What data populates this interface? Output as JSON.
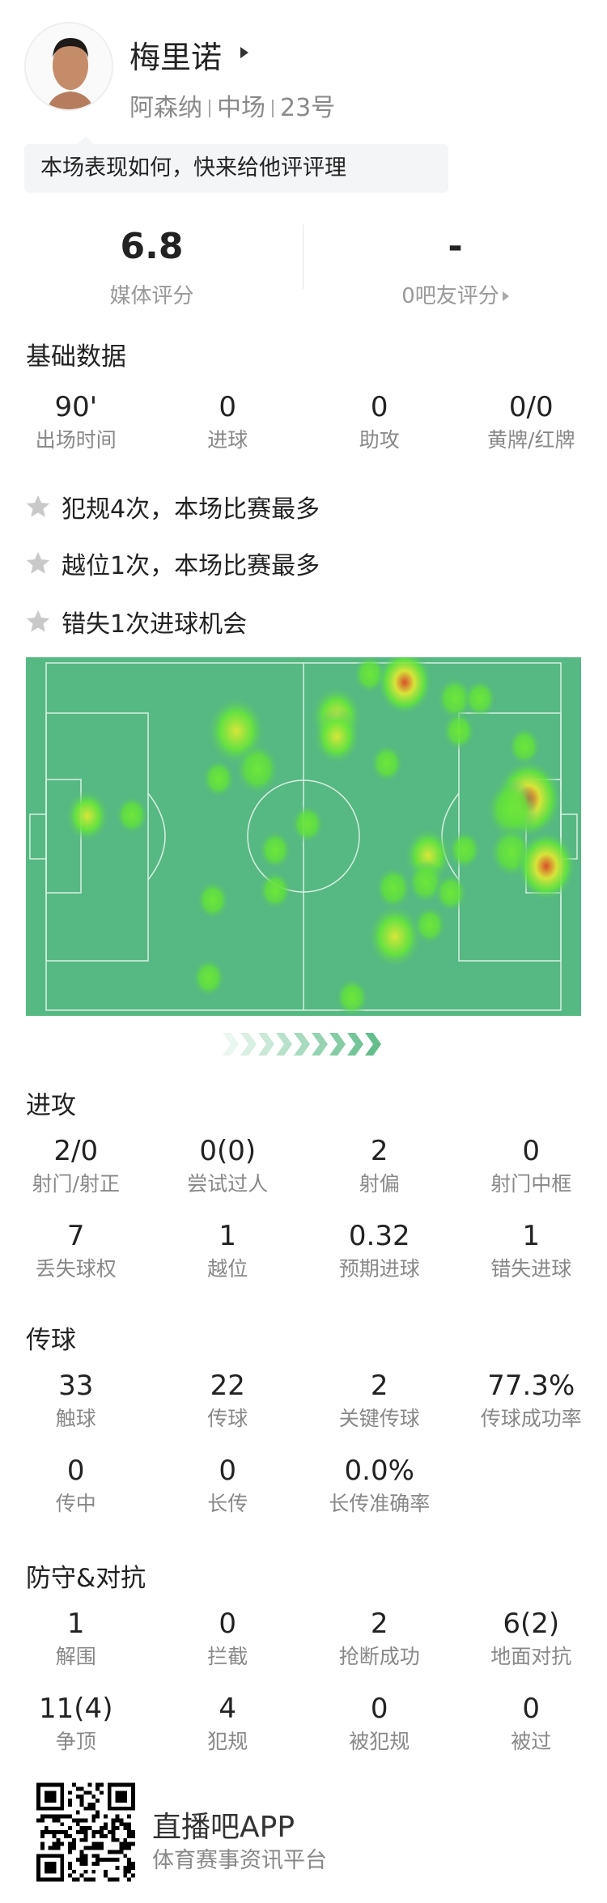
{
  "player": {
    "name": "梅里诺",
    "team": "阿森纳",
    "position": "中场",
    "number": "23号"
  },
  "prompt": "本场表现如何，快来给他评评理",
  "ratings": {
    "media_value": "6.8",
    "media_label": "媒体评分",
    "fan_value": "-",
    "fan_label": "0吧友评分"
  },
  "basic": {
    "title": "基础数据",
    "stats": [
      {
        "value": "90'",
        "label": "出场时间"
      },
      {
        "value": "0",
        "label": "进球"
      },
      {
        "value": "0",
        "label": "助攻"
      },
      {
        "value": "0/0",
        "label": "黄牌/红牌"
      }
    ]
  },
  "highlights": [
    "犯规4次，本场比赛最多",
    "越位1次，本场比赛最多",
    "错失1次进球机会"
  ],
  "icons": {
    "highlight": "star-icon",
    "avatar": "player-photo"
  },
  "colors": {
    "pitch": "#56b882",
    "pitch_lines": "#d8f0e2",
    "heat_hot": "#e0562a",
    "heat_warm": "#d6e83a",
    "heat_cool": "#5ee83a"
  },
  "sections": [
    {
      "title": "进攻",
      "rows": [
        [
          {
            "value": "2/0",
            "label": "射门/射正"
          },
          {
            "value": "0(0)",
            "label": "尝试过人"
          },
          {
            "value": "2",
            "label": "射偏"
          },
          {
            "value": "0",
            "label": "射门中框"
          }
        ],
        [
          {
            "value": "7",
            "label": "丢失球权"
          },
          {
            "value": "1",
            "label": "越位"
          },
          {
            "value": "0.32",
            "label": "预期进球"
          },
          {
            "value": "1",
            "label": "错失进球"
          }
        ]
      ]
    },
    {
      "title": "传球",
      "rows": [
        [
          {
            "value": "33",
            "label": "触球"
          },
          {
            "value": "22",
            "label": "传球"
          },
          {
            "value": "2",
            "label": "关键传球"
          },
          {
            "value": "77.3%",
            "label": "传球成功率"
          }
        ],
        [
          {
            "value": "0",
            "label": "传中"
          },
          {
            "value": "0",
            "label": "长传"
          },
          {
            "value": "0.0%",
            "label": "长传准确率"
          }
        ]
      ]
    },
    {
      "title": "防守&对抗",
      "rows": [
        [
          {
            "value": "1",
            "label": "解围"
          },
          {
            "value": "0",
            "label": "拦截"
          },
          {
            "value": "2",
            "label": "抢断成功"
          },
          {
            "value": "6(2)",
            "label": "地面对抗"
          }
        ],
        [
          {
            "value": "11(4)",
            "label": "争顶"
          },
          {
            "value": "4",
            "label": "犯规"
          },
          {
            "value": "0",
            "label": "被犯规"
          },
          {
            "value": "0",
            "label": "被过"
          }
        ]
      ]
    }
  ],
  "footer": {
    "app_name": "直播吧APP",
    "tagline": "体育赛事资讯平台"
  }
}
